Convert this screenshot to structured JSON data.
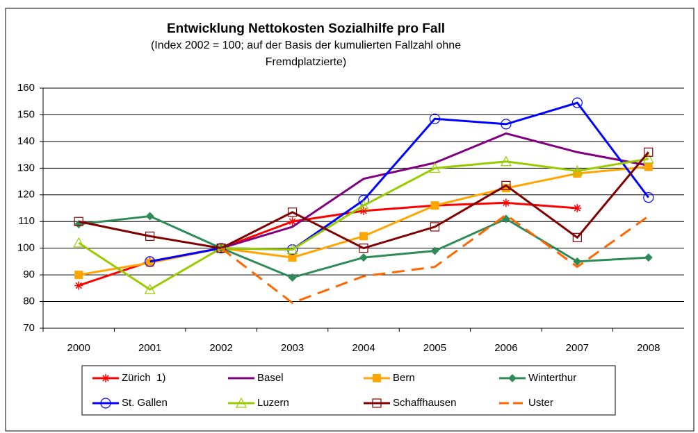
{
  "chart_data": {
    "type": "line",
    "title": "Entwicklung Nettokosten Sozialhilfe pro Fall",
    "subtitle": [
      "(Index 2002 = 100; auf der Basis der kumulierten Fallzahl ohne",
      "Fremdplatzierte)"
    ],
    "categories": [
      "2000",
      "2001",
      "2002",
      "2003",
      "2004",
      "2005",
      "2006",
      "2007",
      "2008"
    ],
    "ylim": [
      70,
      160
    ],
    "yticks": [
      70,
      80,
      90,
      100,
      110,
      120,
      130,
      140,
      150,
      160
    ],
    "grid": true,
    "legend": "bottom",
    "series": [
      {
        "name": "Zürich  1)",
        "color": "#ff0000",
        "marker": "star",
        "values": [
          86,
          95,
          100,
          110,
          114,
          116,
          117,
          115,
          null
        ]
      },
      {
        "name": "Basel",
        "color": "#800080",
        "marker": "none",
        "values": [
          null,
          95,
          100,
          108,
          126,
          132,
          143,
          136,
          131
        ]
      },
      {
        "name": "Bern",
        "color": "#ffa500",
        "marker": "square-filled",
        "values": [
          90,
          94.5,
          100,
          96.5,
          104.5,
          116,
          122.5,
          128,
          130.5
        ]
      },
      {
        "name": "Winterthur",
        "color": "#2e8b57",
        "marker": "diamond",
        "values": [
          109,
          112,
          100,
          89,
          96.5,
          99,
          111,
          95,
          96.5
        ]
      },
      {
        "name": "St. Gallen",
        "color": "#0000ff",
        "marker": "circle-open",
        "values": [
          null,
          95,
          100,
          99.5,
          118,
          148.5,
          146.5,
          154.5,
          119
        ]
      },
      {
        "name": "Luzern",
        "color": "#99cc00",
        "marker": "triangle-open",
        "values": [
          102,
          84.5,
          100,
          99.5,
          116,
          130,
          132.5,
          129,
          133.5
        ]
      },
      {
        "name": "Schaffhausen",
        "color": "#800000",
        "marker": "square-open",
        "values": [
          110,
          104.5,
          100,
          113.5,
          100,
          108,
          123.5,
          104,
          136
        ]
      },
      {
        "name": "Uster",
        "color": "#ff6600",
        "marker": "none",
        "dashed": true,
        "values": [
          null,
          null,
          100,
          79.5,
          89.5,
          93,
          112.5,
          93,
          112
        ]
      }
    ]
  }
}
